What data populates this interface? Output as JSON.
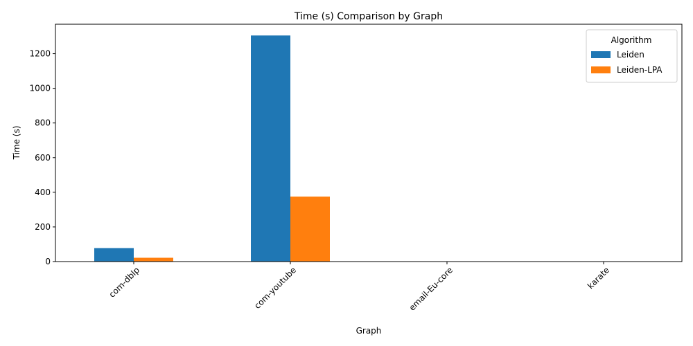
{
  "chart_data": {
    "type": "bar",
    "title": "Time (s) Comparison by Graph",
    "xlabel": "Graph",
    "ylabel": "Time (s)",
    "categories": [
      "com-dblp",
      "com-youtube",
      "email-Eu-core",
      "karate"
    ],
    "series": [
      {
        "name": "Leiden",
        "color": "#1f77b4",
        "values": [
          78,
          1305,
          0.5,
          0.05
        ]
      },
      {
        "name": "Leiden-LPA",
        "color": "#ff7f0e",
        "values": [
          22,
          375,
          0.2,
          0.02
        ]
      }
    ],
    "ylim": [
      0,
      1370
    ],
    "yticks": [
      0,
      200,
      400,
      600,
      800,
      1000,
      1200
    ],
    "legend": {
      "title": "Algorithm",
      "placement": "top-right"
    },
    "grid": false
  }
}
